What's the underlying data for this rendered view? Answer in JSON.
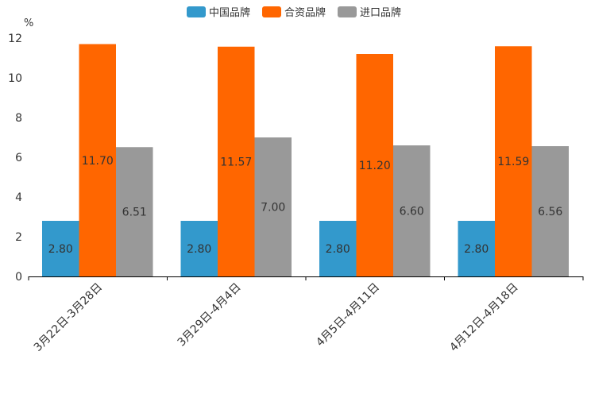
{
  "chart_data": {
    "type": "bar",
    "ylabel": "%",
    "ylim": [
      0,
      12
    ],
    "yticks": [
      "0",
      "2",
      "4",
      "6",
      "8",
      "10",
      "12"
    ],
    "legend_position": "top-center",
    "categories": [
      "3月22日-3月28日",
      "3月29日-4月4日",
      "4月5日-4月11日",
      "4月12日-4月18日"
    ],
    "series": [
      {
        "name": "中国品牌",
        "color": "#3399cc",
        "values": [
          2.8,
          2.8,
          2.8,
          2.8
        ],
        "labels": [
          "2.80",
          "2.80",
          "2.80",
          "2.80"
        ]
      },
      {
        "name": "合资品牌",
        "color": "#ff6600",
        "values": [
          11.7,
          11.57,
          11.2,
          11.59
        ],
        "labels": [
          "11.70",
          "11.57",
          "11.20",
          "11.59"
        ]
      },
      {
        "name": "进口品牌",
        "color": "#999999",
        "values": [
          6.51,
          7.0,
          6.6,
          6.56
        ],
        "labels": [
          "6.51",
          "7.00",
          "6.60",
          "6.56"
        ]
      }
    ]
  }
}
